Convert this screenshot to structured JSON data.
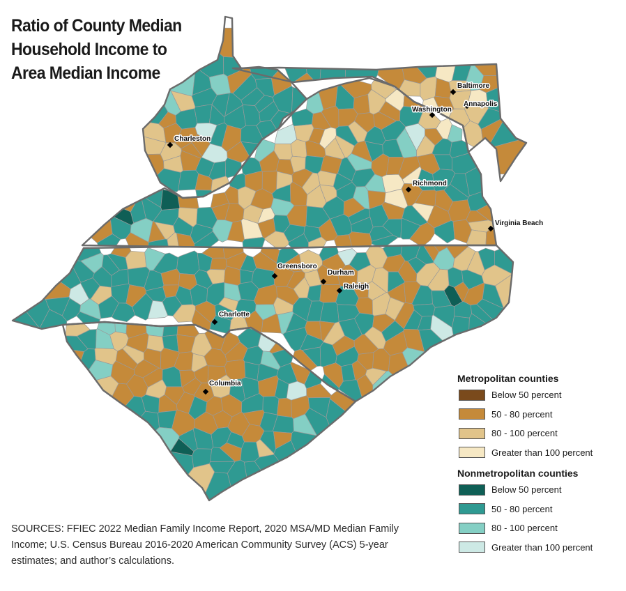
{
  "title_lines": [
    "Ratio of County Median",
    "Household Income to",
    "Area Median Income"
  ],
  "colors": {
    "metro_below_50": "#7a4a1c",
    "metro_50_80": "#c58a3a",
    "metro_80_100": "#e1c48a",
    "metro_gt_100": "#f6e8c4",
    "nonmetro_below_50": "#0f5f56",
    "nonmetro_50_80": "#2f9a92",
    "nonmetro_80_100": "#84cfc4",
    "nonmetro_gt_100": "#cde9e5",
    "state_border": "#6b6b6b",
    "county_border": "#9a9a9a"
  },
  "cities": [
    {
      "name": "Baltimore"
    },
    {
      "name": "Washington"
    },
    {
      "name": "Annapolis"
    },
    {
      "name": "Charleston"
    },
    {
      "name": "Richmond"
    },
    {
      "name": "Virginia Beach"
    },
    {
      "name": "Greensboro"
    },
    {
      "name": "Durham"
    },
    {
      "name": "Raleigh"
    },
    {
      "name": "Charlotte"
    },
    {
      "name": "Columbia"
    }
  ],
  "legend": {
    "metro_heading": "Metropolitan counties",
    "metro_items": [
      {
        "label": "Below 50 percent",
        "color": "#7a4a1c"
      },
      {
        "label": "50 - 80 percent",
        "color": "#c58a3a"
      },
      {
        "label": "80 - 100 percent",
        "color": "#e1c48a"
      },
      {
        "label": "Greater than 100 percent",
        "color": "#f6e8c4"
      }
    ],
    "nonmetro_heading": "Nonmetropolitan counties",
    "nonmetro_items": [
      {
        "label": "Below 50 percent",
        "color": "#0f5f56"
      },
      {
        "label": "50 - 80 percent",
        "color": "#2f9a92"
      },
      {
        "label": "80 - 100 percent",
        "color": "#84cfc4"
      },
      {
        "label": "Greater than 100 percent",
        "color": "#cde9e5"
      }
    ]
  },
  "sources": "SOURCES: FFIEC 2022 Median Family Income Report, 2020 MSA/MD Median Family Income; U.S. Census Bureau 2016-2020 American Community Survey (ACS) 5-year estimates; and author’s calculations."
}
